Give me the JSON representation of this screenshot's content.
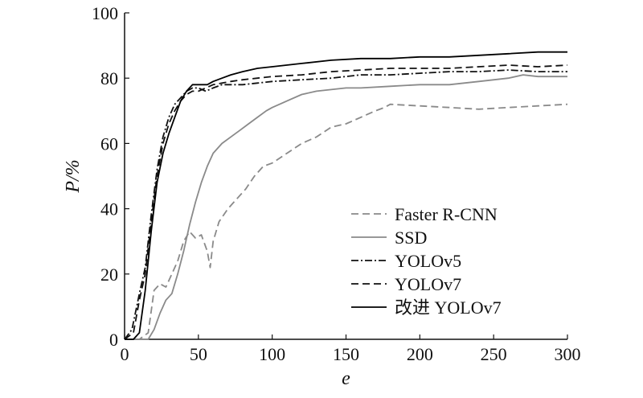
{
  "chart_data": {
    "type": "line",
    "xlabel": "e",
    "ylabel": "P/%",
    "xlim": [
      0,
      300
    ],
    "ylim": [
      0,
      100
    ],
    "xticks": [
      0,
      50,
      100,
      150,
      200,
      250,
      300
    ],
    "yticks": [
      0,
      20,
      40,
      60,
      80,
      100
    ],
    "grid": false,
    "legend_position": "lower-right",
    "series": [
      {
        "name": "Faster R-CNN",
        "color": "#8a8a8a",
        "dash": "dashed",
        "x": [
          0,
          10,
          16,
          20,
          24,
          28,
          32,
          36,
          40,
          44,
          48,
          52,
          56,
          58,
          60,
          64,
          70,
          76,
          82,
          88,
          94,
          100,
          110,
          120,
          130,
          140,
          150,
          160,
          170,
          176,
          180,
          200,
          220,
          240,
          260,
          280,
          300
        ],
        "y": [
          0,
          0,
          2,
          15,
          17,
          16,
          20,
          24,
          30,
          33,
          31,
          32,
          27,
          22,
          30,
          36,
          40,
          43,
          46,
          50,
          53,
          54,
          57,
          60,
          62,
          65,
          66,
          68,
          70,
          71,
          72,
          71.5,
          71,
          70.5,
          71,
          71.5,
          72
        ]
      },
      {
        "name": "SSD",
        "color": "#8a8a8a",
        "dash": "solid",
        "x": [
          0,
          10,
          16,
          20,
          24,
          28,
          32,
          36,
          40,
          44,
          48,
          52,
          56,
          60,
          66,
          72,
          78,
          84,
          90,
          96,
          100,
          110,
          120,
          130,
          140,
          150,
          160,
          180,
          200,
          220,
          240,
          260,
          270,
          280,
          300
        ],
        "y": [
          0,
          0,
          0,
          3,
          8,
          12,
          14,
          20,
          27,
          35,
          42,
          48,
          53,
          57,
          60,
          62,
          64,
          66,
          68,
          70,
          71,
          73,
          75,
          76,
          76.5,
          77,
          77,
          77.5,
          78,
          78,
          79,
          80,
          81,
          80.5,
          80.5
        ]
      },
      {
        "name": "YOLOv5",
        "color": "#111111",
        "dash": "dashdot",
        "x": [
          0,
          5,
          10,
          14,
          18,
          22,
          26,
          30,
          34,
          38,
          42,
          46,
          50,
          55,
          60,
          66,
          72,
          80,
          90,
          100,
          120,
          140,
          160,
          180,
          200,
          220,
          240,
          260,
          280,
          300
        ],
        "y": [
          0,
          3,
          14,
          22,
          38,
          52,
          62,
          68,
          72,
          74,
          76,
          77,
          77,
          76,
          77,
          78,
          78,
          78,
          78.5,
          79,
          79.5,
          80,
          81,
          81,
          81.5,
          82,
          82,
          82.5,
          82,
          82
        ]
      },
      {
        "name": "YOLOv7",
        "color": "#111111",
        "dash": "dashed",
        "x": [
          0,
          6,
          10,
          14,
          18,
          22,
          26,
          30,
          34,
          38,
          42,
          46,
          50,
          55,
          60,
          66,
          72,
          80,
          90,
          100,
          120,
          140,
          160,
          180,
          200,
          220,
          240,
          260,
          280,
          300
        ],
        "y": [
          0,
          2,
          12,
          20,
          36,
          50,
          60,
          66,
          70,
          73,
          75,
          76,
          76,
          77,
          78,
          78.5,
          79,
          79.5,
          80,
          80.5,
          81,
          82,
          82.5,
          83,
          83,
          83,
          83.5,
          84,
          83.5,
          84
        ]
      },
      {
        "name": "改进 YOLOv7",
        "color": "#000000",
        "dash": "solid",
        "x": [
          0,
          6,
          10,
          14,
          18,
          22,
          26,
          30,
          34,
          38,
          42,
          46,
          50,
          56,
          60,
          66,
          72,
          80,
          90,
          100,
          120,
          140,
          160,
          180,
          200,
          220,
          240,
          260,
          280,
          300
        ],
        "y": [
          0,
          0,
          2,
          15,
          33,
          48,
          57,
          63,
          68,
          73,
          76,
          78,
          78,
          78,
          79,
          80,
          81,
          82,
          83,
          83.5,
          84.5,
          85.5,
          86,
          86,
          86.5,
          86.5,
          87,
          87.5,
          88,
          88
        ]
      }
    ]
  }
}
